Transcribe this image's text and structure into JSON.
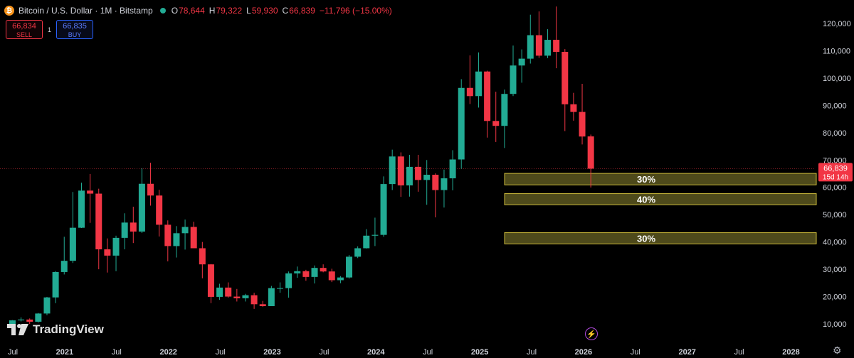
{
  "header": {
    "coin_symbol": "₿",
    "title": "Bitcoin / U.S. Dollar · 1M · Bitstamp",
    "ohlc": [
      {
        "label": "O",
        "value": "78,644"
      },
      {
        "label": "H",
        "value": "79,322"
      },
      {
        "label": "L",
        "value": "59,930"
      },
      {
        "label": "C",
        "value": "66,839"
      }
    ],
    "change": "−11,796 (−15.00%)"
  },
  "trade": {
    "sell_price": "66,834",
    "sell_label": "SELL",
    "buy_price": "66,835",
    "buy_label": "BUY",
    "spread": "1"
  },
  "price_tag": {
    "price": "66,839",
    "countdown": "15d 14h"
  },
  "logo": {
    "text": "TradingView"
  },
  "icons": [
    "bitcoin-icon",
    "market-open-dot-icon",
    "tradingview-logo-icon",
    "lightning-icon",
    "gear-icon"
  ],
  "colors": {
    "up": "#22ab94",
    "down": "#f23645",
    "zone_fill": "#4e4a1b",
    "zone_border": "#c9b83a",
    "background": "#000000"
  },
  "chart_data": {
    "type": "candlestick",
    "interval": "1M",
    "x_ticks": [
      "Jul",
      "2021",
      "Jul",
      "2022",
      "Jul",
      "2023",
      "Jul",
      "2024",
      "Jul",
      "2025",
      "Jul",
      "2026",
      "Jul",
      "2027",
      "Jul",
      "2028"
    ],
    "y_ticks": [
      "120,000",
      "110,000",
      "100,000",
      "90,000",
      "80,000",
      "70,000",
      "60,000",
      "50,000",
      "40,000",
      "30,000",
      "20,000",
      "10,000"
    ],
    "ylim": [
      8000,
      125000
    ],
    "candles": [
      {
        "m": "2020-07",
        "o": 9100,
        "h": 11400,
        "l": 9000,
        "c": 11300
      },
      {
        "m": "2020-08",
        "o": 11300,
        "h": 12400,
        "l": 10900,
        "c": 11600
      },
      {
        "m": "2020-09",
        "o": 11600,
        "h": 12000,
        "l": 10000,
        "c": 10800
      },
      {
        "m": "2020-10",
        "o": 10800,
        "h": 14000,
        "l": 10500,
        "c": 13800
      },
      {
        "m": "2020-11",
        "o": 13800,
        "h": 19900,
        "l": 13200,
        "c": 19700
      },
      {
        "m": "2020-12",
        "o": 19700,
        "h": 29300,
        "l": 17600,
        "c": 29000
      },
      {
        "m": "2021-01",
        "o": 29000,
        "h": 41900,
        "l": 28100,
        "c": 33100
      },
      {
        "m": "2021-02",
        "o": 33100,
        "h": 58300,
        "l": 32300,
        "c": 45200
      },
      {
        "m": "2021-03",
        "o": 45200,
        "h": 61700,
        "l": 45100,
        "c": 58800
      },
      {
        "m": "2021-04",
        "o": 58800,
        "h": 64900,
        "l": 47000,
        "c": 57700
      },
      {
        "m": "2021-05",
        "o": 57700,
        "h": 59500,
        "l": 30000,
        "c": 37300
      },
      {
        "m": "2021-06",
        "o": 37300,
        "h": 41300,
        "l": 28800,
        "c": 35000
      },
      {
        "m": "2021-07",
        "o": 35000,
        "h": 42300,
        "l": 29300,
        "c": 41500
      },
      {
        "m": "2021-08",
        "o": 41500,
        "h": 50500,
        "l": 37300,
        "c": 47100
      },
      {
        "m": "2021-09",
        "o": 47100,
        "h": 52900,
        "l": 39600,
        "c": 43800
      },
      {
        "m": "2021-10",
        "o": 43800,
        "h": 67000,
        "l": 43300,
        "c": 61300
      },
      {
        "m": "2021-11",
        "o": 61300,
        "h": 69000,
        "l": 53300,
        "c": 57000
      },
      {
        "m": "2021-12",
        "o": 57000,
        "h": 59100,
        "l": 42000,
        "c": 46300
      },
      {
        "m": "2022-01",
        "o": 46300,
        "h": 47900,
        "l": 32900,
        "c": 38500
      },
      {
        "m": "2022-02",
        "o": 38500,
        "h": 45800,
        "l": 34300,
        "c": 43200
      },
      {
        "m": "2022-03",
        "o": 43200,
        "h": 48200,
        "l": 37200,
        "c": 45500
      },
      {
        "m": "2022-04",
        "o": 45500,
        "h": 47400,
        "l": 37700,
        "c": 37700
      },
      {
        "m": "2022-05",
        "o": 37700,
        "h": 40000,
        "l": 26700,
        "c": 31800
      },
      {
        "m": "2022-06",
        "o": 31800,
        "h": 31900,
        "l": 17600,
        "c": 19900
      },
      {
        "m": "2022-07",
        "o": 19900,
        "h": 24700,
        "l": 18800,
        "c": 23300
      },
      {
        "m": "2022-08",
        "o": 23300,
        "h": 25200,
        "l": 19600,
        "c": 20000
      },
      {
        "m": "2022-09",
        "o": 20000,
        "h": 22800,
        "l": 18200,
        "c": 19400
      },
      {
        "m": "2022-10",
        "o": 19400,
        "h": 21000,
        "l": 18200,
        "c": 20500
      },
      {
        "m": "2022-11",
        "o": 20500,
        "h": 21400,
        "l": 15500,
        "c": 17200
      },
      {
        "m": "2022-12",
        "o": 17200,
        "h": 18400,
        "l": 16300,
        "c": 16500
      },
      {
        "m": "2023-01",
        "o": 16500,
        "h": 23900,
        "l": 16500,
        "c": 23100
      },
      {
        "m": "2023-02",
        "o": 23100,
        "h": 25200,
        "l": 21400,
        "c": 23100
      },
      {
        "m": "2023-03",
        "o": 23100,
        "h": 29200,
        "l": 19600,
        "c": 28500
      },
      {
        "m": "2023-04",
        "o": 28500,
        "h": 31000,
        "l": 26900,
        "c": 29300
      },
      {
        "m": "2023-05",
        "o": 29300,
        "h": 29800,
        "l": 25800,
        "c": 27200
      },
      {
        "m": "2023-06",
        "o": 27200,
        "h": 31400,
        "l": 24800,
        "c": 30500
      },
      {
        "m": "2023-07",
        "o": 30500,
        "h": 31800,
        "l": 28900,
        "c": 29200
      },
      {
        "m": "2023-08",
        "o": 29200,
        "h": 30200,
        "l": 25300,
        "c": 26000
      },
      {
        "m": "2023-09",
        "o": 26000,
        "h": 27500,
        "l": 24900,
        "c": 27000
      },
      {
        "m": "2023-10",
        "o": 27000,
        "h": 35200,
        "l": 26600,
        "c": 34600
      },
      {
        "m": "2023-11",
        "o": 34600,
        "h": 38400,
        "l": 34100,
        "c": 37700
      },
      {
        "m": "2023-12",
        "o": 37700,
        "h": 44700,
        "l": 37600,
        "c": 42300
      },
      {
        "m": "2024-01",
        "o": 42300,
        "h": 48900,
        "l": 38500,
        "c": 42600
      },
      {
        "m": "2024-02",
        "o": 42600,
        "h": 64000,
        "l": 41900,
        "c": 61200
      },
      {
        "m": "2024-03",
        "o": 61200,
        "h": 73800,
        "l": 59000,
        "c": 71300
      },
      {
        "m": "2024-04",
        "o": 71300,
        "h": 72800,
        "l": 56500,
        "c": 60700
      },
      {
        "m": "2024-05",
        "o": 60700,
        "h": 71900,
        "l": 56600,
        "c": 67500
      },
      {
        "m": "2024-06",
        "o": 67500,
        "h": 71900,
        "l": 58400,
        "c": 62700
      },
      {
        "m": "2024-07",
        "o": 62700,
        "h": 70000,
        "l": 53600,
        "c": 64600
      },
      {
        "m": "2024-08",
        "o": 64600,
        "h": 65100,
        "l": 49000,
        "c": 59000
      },
      {
        "m": "2024-09",
        "o": 59000,
        "h": 66500,
        "l": 52600,
        "c": 63300
      },
      {
        "m": "2024-10",
        "o": 63300,
        "h": 73600,
        "l": 58900,
        "c": 70200
      },
      {
        "m": "2024-11",
        "o": 70200,
        "h": 99600,
        "l": 66800,
        "c": 96400
      },
      {
        "m": "2024-12",
        "o": 96400,
        "h": 108300,
        "l": 90500,
        "c": 93400
      },
      {
        "m": "2025-01",
        "o": 93400,
        "h": 109400,
        "l": 89200,
        "c": 102400
      },
      {
        "m": "2025-02",
        "o": 102400,
        "h": 102700,
        "l": 78200,
        "c": 84300
      },
      {
        "m": "2025-03",
        "o": 84300,
        "h": 95000,
        "l": 76600,
        "c": 82500
      },
      {
        "m": "2025-04",
        "o": 82500,
        "h": 95800,
        "l": 74400,
        "c": 94200
      },
      {
        "m": "2025-05",
        "o": 94200,
        "h": 111900,
        "l": 93400,
        "c": 104600
      },
      {
        "m": "2025-06",
        "o": 104600,
        "h": 110500,
        "l": 98300,
        "c": 107100
      },
      {
        "m": "2025-07",
        "o": 107100,
        "h": 123200,
        "l": 105300,
        "c": 115700
      },
      {
        "m": "2025-08",
        "o": 115700,
        "h": 124400,
        "l": 107400,
        "c": 108200
      },
      {
        "m": "2025-09",
        "o": 108200,
        "h": 117900,
        "l": 107300,
        "c": 114000
      },
      {
        "m": "2025-10",
        "o": 114000,
        "h": 126200,
        "l": 103600,
        "c": 109600
      },
      {
        "m": "2025-11",
        "o": 109600,
        "h": 110600,
        "l": 80600,
        "c": 90400
      },
      {
        "m": "2025-12",
        "o": 90400,
        "h": 94600,
        "l": 84400,
        "c": 87600
      },
      {
        "m": "2026-01",
        "o": 87600,
        "h": 97900,
        "l": 75700,
        "c": 78600
      },
      {
        "m": "2026-02",
        "o": 78644,
        "h": 79322,
        "l": 59930,
        "c": 66839
      }
    ],
    "current_price": 66839,
    "zones": [
      {
        "label": "30%",
        "from": 60900,
        "to": 65100
      },
      {
        "label": "40%",
        "from": 53600,
        "to": 57700
      },
      {
        "label": "30%",
        "from": 39300,
        "to": 43400
      }
    ]
  }
}
